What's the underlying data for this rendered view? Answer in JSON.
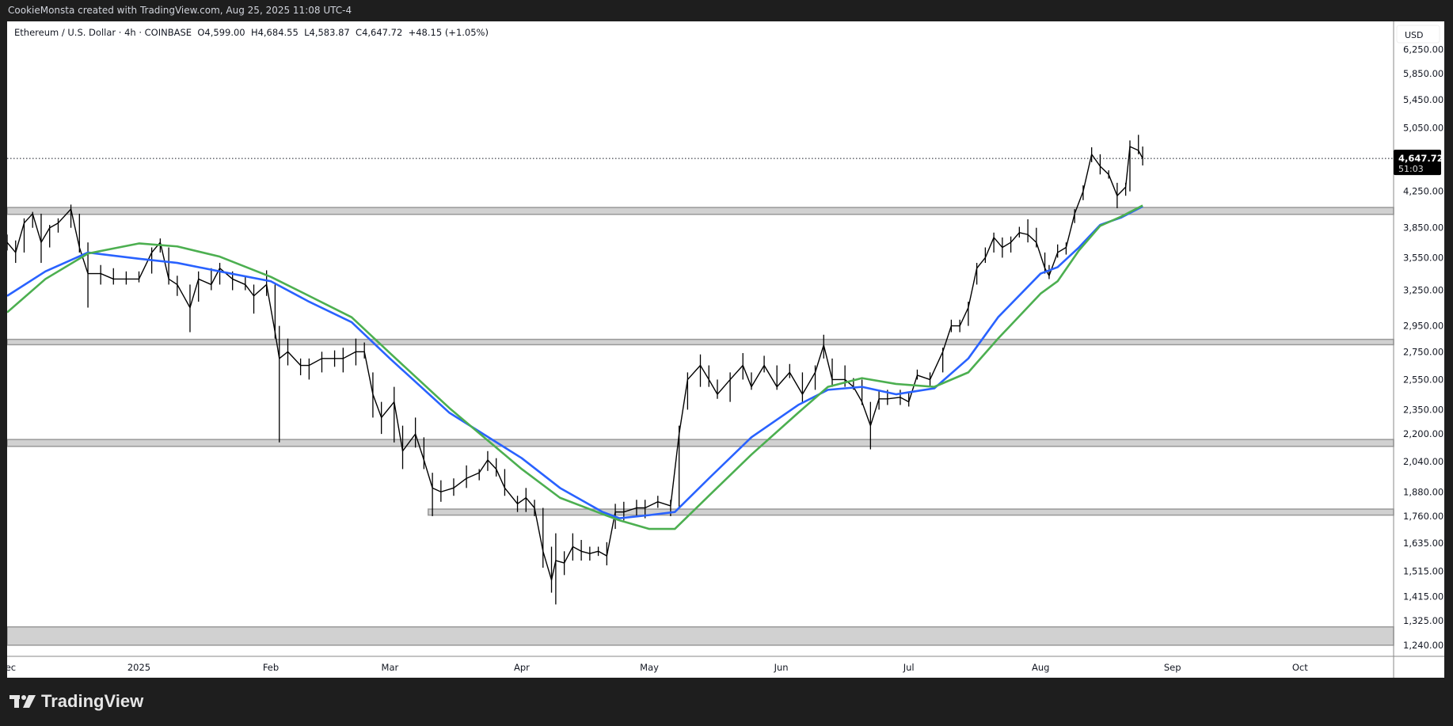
{
  "header": {
    "attribution": "CookieMonsta created with TradingView.com, Aug 25, 2025 11:08 UTC-4"
  },
  "legend": {
    "symbol": "Ethereum / U.S. Dollar · 4h · COINBASE",
    "open": "O4,599.00",
    "high": "H4,684.55",
    "low": "L4,583.87",
    "close": "C4,647.72",
    "change": "+48.15 (+1.05%)"
  },
  "price_axis": {
    "currency": "USD",
    "last_price": "4,647.72",
    "countdown": "51:03"
  },
  "footer": {
    "logo": "TradingView"
  },
  "colors": {
    "price": "#000000",
    "ma_blue": "#2962ff",
    "ma_green": "#4caf50",
    "zone_fill": "#d1d1d1",
    "zone_border": "#999999"
  },
  "chart_data": {
    "type": "line",
    "scale": "log",
    "ylim": [
      1203,
      6742
    ],
    "xlim": [
      "2024-12-01",
      "2025-10-23"
    ],
    "grid": false,
    "y_ticks": [
      "6,250.00",
      "5,850.00",
      "5,450.00",
      "5,050.00",
      "4,250.00",
      "3,850.00",
      "3,550.00",
      "3,250.00",
      "2,950.00",
      "2,750.00",
      "2,550.00",
      "2,350.00",
      "2,200.00",
      "2,040.00",
      "1,880.00",
      "1,760.00",
      "1,635.00",
      "1,515.00",
      "1,415.00",
      "1,325.00",
      "1,240.00"
    ],
    "x_ticks": [
      {
        "label": "Dec",
        "date": "2024-12-01"
      },
      {
        "label": "2025",
        "date": "2025-01-01"
      },
      {
        "label": "Feb",
        "date": "2025-02-01"
      },
      {
        "label": "Mar",
        "date": "2025-03-01"
      },
      {
        "label": "Apr",
        "date": "2025-04-01"
      },
      {
        "label": "May",
        "date": "2025-05-01"
      },
      {
        "label": "Jun",
        "date": "2025-06-01"
      },
      {
        "label": "Jul",
        "date": "2025-07-01"
      },
      {
        "label": "Aug",
        "date": "2025-08-01"
      },
      {
        "label": "Sep",
        "date": "2025-09-01"
      },
      {
        "label": "Oct",
        "date": "2025-10-01"
      }
    ],
    "last_close": 4647.72,
    "zones": [
      {
        "from": "2024-12-01",
        "low": 3993,
        "high": 4068
      },
      {
        "from": "2024-12-01",
        "low": 2803,
        "high": 2844
      },
      {
        "from": "2024-12-01",
        "low": 2127,
        "high": 2167
      },
      {
        "from": "2025-03-10",
        "low": 1765,
        "high": 1794
      },
      {
        "from": "2024-12-01",
        "low": 1240,
        "high": 1303
      }
    ],
    "price": [
      [
        "2024-12-01",
        3780,
        3620,
        3700
      ],
      [
        "2024-12-03",
        3720,
        3500,
        3600
      ],
      [
        "2024-12-05",
        3950,
        3600,
        3900
      ],
      [
        "2024-12-07",
        4020,
        3850,
        4000
      ],
      [
        "2024-12-09",
        4000,
        3500,
        3700
      ],
      [
        "2024-12-11",
        3880,
        3650,
        3850
      ],
      [
        "2024-12-13",
        3950,
        3800,
        3900
      ],
      [
        "2024-12-16",
        4100,
        3850,
        4050
      ],
      [
        "2024-12-18",
        4000,
        3600,
        3650
      ],
      [
        "2024-12-20",
        3700,
        3100,
        3400
      ],
      [
        "2024-12-23",
        3480,
        3300,
        3400
      ],
      [
        "2024-12-26",
        3450,
        3300,
        3350
      ],
      [
        "2024-12-29",
        3420,
        3300,
        3350
      ],
      [
        "2025-01-01",
        3420,
        3320,
        3350
      ],
      [
        "2025-01-04",
        3650,
        3400,
        3600
      ],
      [
        "2025-01-06",
        3740,
        3600,
        3700
      ],
      [
        "2025-01-08",
        3650,
        3300,
        3350
      ],
      [
        "2025-01-10",
        3380,
        3200,
        3300
      ],
      [
        "2025-01-13",
        3300,
        2900,
        3100
      ],
      [
        "2025-01-15",
        3420,
        3150,
        3350
      ],
      [
        "2025-01-18",
        3450,
        3250,
        3300
      ],
      [
        "2025-01-20",
        3500,
        3300,
        3450
      ],
      [
        "2025-01-23",
        3420,
        3250,
        3350
      ],
      [
        "2025-01-26",
        3380,
        3250,
        3300
      ],
      [
        "2025-01-28",
        3300,
        3050,
        3200
      ],
      [
        "2025-01-31",
        3430,
        3200,
        3300
      ],
      [
        "2025-02-02",
        3300,
        2850,
        2900
      ],
      [
        "2025-02-03",
        2950,
        2150,
        2700
      ],
      [
        "2025-02-05",
        2850,
        2650,
        2750
      ],
      [
        "2025-02-08",
        2700,
        2580,
        2650
      ],
      [
        "2025-02-10",
        2700,
        2550,
        2650
      ],
      [
        "2025-02-13",
        2750,
        2600,
        2700
      ],
      [
        "2025-02-16",
        2760,
        2640,
        2700
      ],
      [
        "2025-02-18",
        2780,
        2600,
        2700
      ],
      [
        "2025-02-21",
        2850,
        2650,
        2750
      ],
      [
        "2025-02-23",
        2820,
        2700,
        2750
      ],
      [
        "2025-02-25",
        2600,
        2300,
        2450
      ],
      [
        "2025-02-27",
        2400,
        2200,
        2300
      ],
      [
        "2025-03-02",
        2500,
        2150,
        2400
      ],
      [
        "2025-03-04",
        2250,
        2000,
        2100
      ],
      [
        "2025-03-07",
        2300,
        2120,
        2200
      ],
      [
        "2025-03-09",
        2180,
        2000,
        2050
      ],
      [
        "2025-03-11",
        1980,
        1760,
        1900
      ],
      [
        "2025-03-13",
        1940,
        1830,
        1880
      ],
      [
        "2025-03-16",
        1950,
        1860,
        1900
      ],
      [
        "2025-03-19",
        2020,
        1900,
        1950
      ],
      [
        "2025-03-22",
        2000,
        1940,
        1980
      ],
      [
        "2025-03-24",
        2100,
        1990,
        2050
      ],
      [
        "2025-03-26",
        2060,
        1960,
        2000
      ],
      [
        "2025-03-28",
        2000,
        1860,
        1900
      ],
      [
        "2025-03-31",
        1860,
        1780,
        1820
      ],
      [
        "2025-04-02",
        1900,
        1780,
        1850
      ],
      [
        "2025-04-04",
        1840,
        1760,
        1800
      ],
      [
        "2025-04-06",
        1800,
        1530,
        1600
      ],
      [
        "2025-04-08",
        1620,
        1430,
        1480
      ],
      [
        "2025-04-09",
        1680,
        1385,
        1560
      ],
      [
        "2025-04-11",
        1600,
        1500,
        1550
      ],
      [
        "2025-04-13",
        1680,
        1560,
        1620
      ],
      [
        "2025-04-15",
        1650,
        1560,
        1600
      ],
      [
        "2025-04-17",
        1620,
        1560,
        1590
      ],
      [
        "2025-04-19",
        1620,
        1580,
        1600
      ],
      [
        "2025-04-21",
        1640,
        1540,
        1580
      ],
      [
        "2025-04-23",
        1820,
        1700,
        1780
      ],
      [
        "2025-04-25",
        1830,
        1740,
        1780
      ],
      [
        "2025-04-28",
        1840,
        1760,
        1800
      ],
      [
        "2025-04-30",
        1840,
        1750,
        1800
      ],
      [
        "2025-05-03",
        1860,
        1800,
        1830
      ],
      [
        "2025-05-06",
        1840,
        1760,
        1810
      ],
      [
        "2025-05-08",
        2250,
        1800,
        2200
      ],
      [
        "2025-05-10",
        2600,
        2350,
        2550
      ],
      [
        "2025-05-13",
        2730,
        2500,
        2650
      ],
      [
        "2025-05-15",
        2650,
        2500,
        2550
      ],
      [
        "2025-05-17",
        2550,
        2420,
        2450
      ],
      [
        "2025-05-20",
        2600,
        2400,
        2550
      ],
      [
        "2025-05-23",
        2740,
        2550,
        2650
      ],
      [
        "2025-05-25",
        2600,
        2480,
        2500
      ],
      [
        "2025-05-28",
        2720,
        2600,
        2650
      ],
      [
        "2025-05-31",
        2650,
        2480,
        2500
      ],
      [
        "2025-06-03",
        2660,
        2560,
        2600
      ],
      [
        "2025-06-06",
        2600,
        2400,
        2450
      ],
      [
        "2025-06-09",
        2650,
        2480,
        2600
      ],
      [
        "2025-06-11",
        2880,
        2700,
        2800
      ],
      [
        "2025-06-13",
        2700,
        2500,
        2550
      ],
      [
        "2025-06-16",
        2650,
        2500,
        2550
      ],
      [
        "2025-06-18",
        2560,
        2480,
        2500
      ],
      [
        "2025-06-20",
        2550,
        2380,
        2400
      ],
      [
        "2025-06-22",
        2400,
        2110,
        2250
      ],
      [
        "2025-06-24",
        2480,
        2350,
        2420
      ],
      [
        "2025-06-26",
        2480,
        2380,
        2420
      ],
      [
        "2025-06-29",
        2480,
        2380,
        2430
      ],
      [
        "2025-07-01",
        2460,
        2370,
        2400
      ],
      [
        "2025-07-03",
        2620,
        2550,
        2580
      ],
      [
        "2025-07-06",
        2600,
        2500,
        2550
      ],
      [
        "2025-07-09",
        2780,
        2600,
        2750
      ],
      [
        "2025-07-11",
        3000,
        2900,
        2950
      ],
      [
        "2025-07-13",
        3000,
        2900,
        2950
      ],
      [
        "2025-07-15",
        3150,
        2950,
        3100
      ],
      [
        "2025-07-17",
        3500,
        3300,
        3450
      ],
      [
        "2025-07-19",
        3650,
        3500,
        3550
      ],
      [
        "2025-07-21",
        3800,
        3600,
        3750
      ],
      [
        "2025-07-23",
        3750,
        3550,
        3650
      ],
      [
        "2025-07-25",
        3760,
        3600,
        3700
      ],
      [
        "2025-07-27",
        3860,
        3750,
        3800
      ],
      [
        "2025-07-29",
        3940,
        3700,
        3780
      ],
      [
        "2025-07-31",
        3850,
        3650,
        3700
      ],
      [
        "2025-08-02",
        3600,
        3400,
        3450
      ],
      [
        "2025-08-03",
        3480,
        3350,
        3380
      ],
      [
        "2025-08-05",
        3680,
        3550,
        3600
      ],
      [
        "2025-08-07",
        3700,
        3580,
        3650
      ],
      [
        "2025-08-09",
        4050,
        3900,
        4000
      ],
      [
        "2025-08-11",
        4320,
        4150,
        4250
      ],
      [
        "2025-08-13",
        4790,
        4600,
        4700
      ],
      [
        "2025-08-15",
        4700,
        4450,
        4550
      ],
      [
        "2025-08-17",
        4500,
        4400,
        4450
      ],
      [
        "2025-08-19",
        4350,
        4060,
        4200
      ],
      [
        "2025-08-21",
        4350,
        4200,
        4300
      ],
      [
        "2025-08-22",
        4880,
        4250,
        4800
      ],
      [
        "2025-08-24",
        4955,
        4700,
        4750
      ],
      [
        "2025-08-25",
        4800,
        4560,
        4647.72
      ]
    ],
    "series": [
      {
        "color": "#2962ff",
        "values": [
          [
            "2024-12-01",
            3200
          ],
          [
            "2024-12-10",
            3420
          ],
          [
            "2024-12-20",
            3600
          ],
          [
            "2025-01-01",
            3540
          ],
          [
            "2025-01-10",
            3500
          ],
          [
            "2025-01-20",
            3420
          ],
          [
            "2025-02-01",
            3330
          ],
          [
            "2025-02-10",
            3150
          ],
          [
            "2025-02-20",
            2980
          ],
          [
            "2025-03-01",
            2700
          ],
          [
            "2025-03-15",
            2330
          ],
          [
            "2025-04-01",
            2060
          ],
          [
            "2025-04-10",
            1900
          ],
          [
            "2025-04-20",
            1780
          ],
          [
            "2025-04-24",
            1750
          ],
          [
            "2025-05-01",
            1765
          ],
          [
            "2025-05-07",
            1780
          ],
          [
            "2025-05-15",
            1950
          ],
          [
            "2025-05-25",
            2180
          ],
          [
            "2025-06-05",
            2380
          ],
          [
            "2025-06-12",
            2480
          ],
          [
            "2025-06-20",
            2500
          ],
          [
            "2025-06-28",
            2450
          ],
          [
            "2025-07-07",
            2490
          ],
          [
            "2025-07-15",
            2700
          ],
          [
            "2025-07-22",
            3020
          ],
          [
            "2025-08-01",
            3400
          ],
          [
            "2025-08-05",
            3460
          ],
          [
            "2025-08-10",
            3650
          ],
          [
            "2025-08-15",
            3880
          ],
          [
            "2025-08-20",
            3960
          ],
          [
            "2025-08-25",
            4080
          ]
        ]
      },
      {
        "color": "#4caf50",
        "values": [
          [
            "2024-12-01",
            3060
          ],
          [
            "2024-12-10",
            3350
          ],
          [
            "2024-12-20",
            3590
          ],
          [
            "2025-01-01",
            3690
          ],
          [
            "2025-01-10",
            3660
          ],
          [
            "2025-01-20",
            3560
          ],
          [
            "2025-02-01",
            3370
          ],
          [
            "2025-02-10",
            3200
          ],
          [
            "2025-02-20",
            3020
          ],
          [
            "2025-03-01",
            2740
          ],
          [
            "2025-03-15",
            2360
          ],
          [
            "2025-04-01",
            2000
          ],
          [
            "2025-04-10",
            1850
          ],
          [
            "2025-04-20",
            1770
          ],
          [
            "2025-04-24",
            1740
          ],
          [
            "2025-05-01",
            1700
          ],
          [
            "2025-05-07",
            1700
          ],
          [
            "2025-05-15",
            1860
          ],
          [
            "2025-05-25",
            2080
          ],
          [
            "2025-06-05",
            2330
          ],
          [
            "2025-06-12",
            2500
          ],
          [
            "2025-06-20",
            2560
          ],
          [
            "2025-06-28",
            2520
          ],
          [
            "2025-07-07",
            2500
          ],
          [
            "2025-07-15",
            2600
          ],
          [
            "2025-07-22",
            2850
          ],
          [
            "2025-08-01",
            3220
          ],
          [
            "2025-08-05",
            3330
          ],
          [
            "2025-08-10",
            3620
          ],
          [
            "2025-08-15",
            3870
          ],
          [
            "2025-08-20",
            3970
          ],
          [
            "2025-08-25",
            4090
          ]
        ]
      }
    ]
  }
}
